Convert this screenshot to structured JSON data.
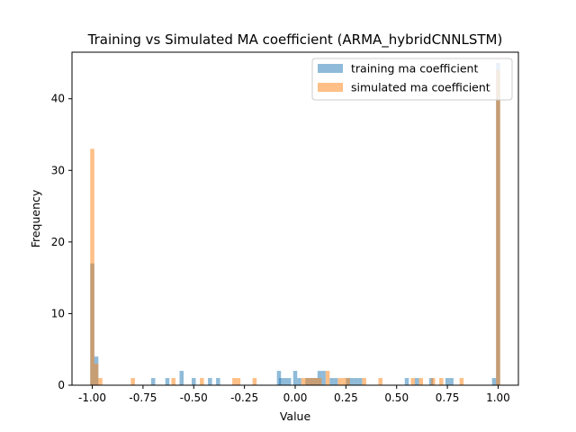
{
  "chart_data": {
    "type": "bar",
    "subtype": "histogram-overlay",
    "title": "Training vs Simulated MA coefficient (ARMA_hybridCNNLSTM)",
    "xlabel": "Value",
    "ylabel": "Frequency",
    "xlim": [
      -1.1,
      1.1
    ],
    "ylim": [
      0,
      46.5
    ],
    "bin_width": 0.02,
    "xticks": [
      "-1.00",
      "-0.75",
      "-0.50",
      "-0.25",
      "0.00",
      "0.25",
      "0.50",
      "0.75",
      "1.00"
    ],
    "xtick_values": [
      -1.0,
      -0.75,
      -0.5,
      -0.25,
      0.0,
      0.25,
      0.5,
      0.75,
      1.0
    ],
    "yticks": [
      "0",
      "10",
      "20",
      "30",
      "40"
    ],
    "ytick_values": [
      0,
      10,
      20,
      30,
      40
    ],
    "grid": false,
    "legend_position": "top-right",
    "series": [
      {
        "name": "training ma coefficient",
        "color": "#1f77b4",
        "alpha": 0.5,
        "bins": [
          [
            -1.0,
            17
          ],
          [
            -0.98,
            4
          ],
          [
            -0.7,
            1
          ],
          [
            -0.63,
            1
          ],
          [
            -0.56,
            2
          ],
          [
            -0.5,
            1
          ],
          [
            -0.42,
            1
          ],
          [
            -0.38,
            1
          ],
          [
            -0.08,
            2
          ],
          [
            -0.07,
            1
          ],
          [
            -0.05,
            1
          ],
          [
            -0.03,
            1
          ],
          [
            0.0,
            2
          ],
          [
            0.02,
            1
          ],
          [
            0.06,
            1
          ],
          [
            0.08,
            1
          ],
          [
            0.1,
            1
          ],
          [
            0.12,
            2
          ],
          [
            0.14,
            2
          ],
          [
            0.18,
            1
          ],
          [
            0.2,
            1
          ],
          [
            0.26,
            1
          ],
          [
            0.28,
            1
          ],
          [
            0.3,
            1
          ],
          [
            0.32,
            1
          ],
          [
            0.55,
            1
          ],
          [
            0.6,
            1
          ],
          [
            0.67,
            1
          ],
          [
            0.75,
            1
          ],
          [
            0.77,
            1
          ],
          [
            0.98,
            1
          ],
          [
            1.0,
            45
          ]
        ]
      },
      {
        "name": "simulated ma coefficient",
        "color": "#ff7f0e",
        "alpha": 0.5,
        "bins": [
          [
            -1.0,
            33
          ],
          [
            -0.98,
            3
          ],
          [
            -0.96,
            1
          ],
          [
            -0.8,
            1
          ],
          [
            -0.6,
            1
          ],
          [
            -0.46,
            1
          ],
          [
            -0.3,
            1
          ],
          [
            -0.28,
            1
          ],
          [
            -0.2,
            1
          ],
          [
            0.04,
            1
          ],
          [
            0.06,
            1
          ],
          [
            0.08,
            1
          ],
          [
            0.1,
            1
          ],
          [
            0.12,
            1
          ],
          [
            0.16,
            2
          ],
          [
            0.22,
            1
          ],
          [
            0.24,
            1
          ],
          [
            0.26,
            1
          ],
          [
            0.34,
            1
          ],
          [
            0.42,
            1
          ],
          [
            0.58,
            1
          ],
          [
            0.62,
            1
          ],
          [
            0.68,
            1
          ],
          [
            0.72,
            1
          ],
          [
            0.82,
            1
          ],
          [
            1.0,
            44
          ]
        ]
      }
    ]
  }
}
